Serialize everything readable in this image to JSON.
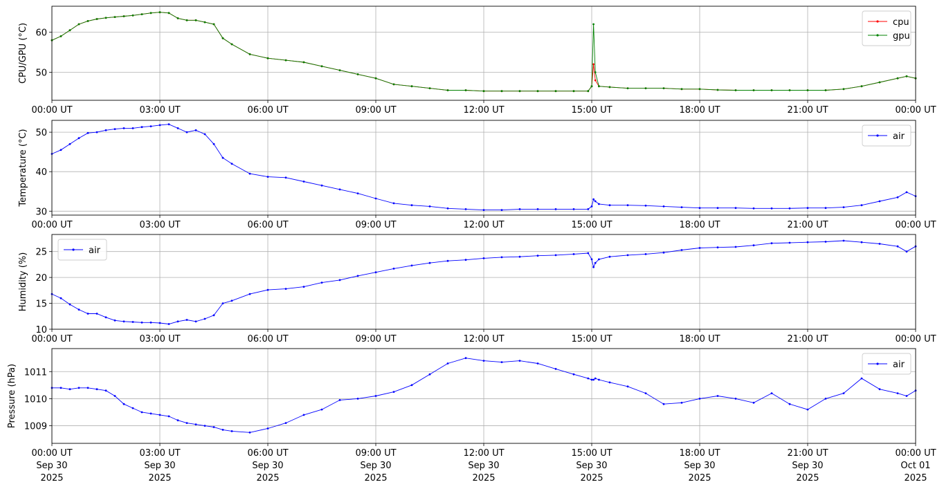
{
  "chart_data": [
    {
      "type": "line",
      "ylabel": "CPU/GPU (°C)",
      "ylim": [
        43,
        66.5
      ],
      "yticks": [
        50,
        60
      ],
      "xlim": [
        "00:00 UT",
        "00:00 UT"
      ],
      "xtick_labels": [
        "00:00 UT",
        "03:00 UT",
        "06:00 UT",
        "09:00 UT",
        "12:00 UT",
        "15:00 UT",
        "18:00 UT",
        "21:00 UT",
        "00:00 UT"
      ],
      "grid": true,
      "legend": "top-right",
      "x_hours": [
        0,
        0.25,
        0.5,
        0.75,
        1,
        1.25,
        1.5,
        1.75,
        2,
        2.25,
        2.5,
        2.75,
        3,
        3.25,
        3.5,
        3.75,
        4,
        4.25,
        4.5,
        4.75,
        5,
        5.5,
        6,
        6.5,
        7,
        7.5,
        8,
        8.5,
        9,
        9.5,
        10,
        10.5,
        11,
        11.5,
        12,
        12.5,
        13,
        13.5,
        14,
        14.5,
        14.9,
        15,
        15.05,
        15.1,
        15.2,
        15.5,
        16,
        16.5,
        17,
        17.5,
        18,
        18.5,
        19,
        19.5,
        20,
        20.5,
        21,
        21.5,
        22,
        22.5,
        23,
        23.5,
        23.75,
        24
      ],
      "series": [
        {
          "name": "cpu",
          "color": "#ff0000",
          "values": [
            58,
            59,
            60.5,
            62,
            62.8,
            63.3,
            63.6,
            63.8,
            64,
            64.2,
            64.5,
            64.8,
            65,
            64.8,
            63.5,
            63,
            63,
            62.5,
            62,
            58.5,
            57,
            54.5,
            53.5,
            53,
            52.5,
            51.5,
            50.5,
            49.5,
            48.5,
            47,
            46.5,
            46,
            45.5,
            45.5,
            45.3,
            45.3,
            45.3,
            45.3,
            45.3,
            45.3,
            45.3,
            46.5,
            52,
            48,
            46.5,
            46.3,
            46,
            46,
            46,
            45.8,
            45.8,
            45.6,
            45.5,
            45.5,
            45.5,
            45.5,
            45.5,
            45.5,
            45.8,
            46.5,
            47.5,
            48.5,
            49,
            48.5
          ]
        },
        {
          "name": "gpu",
          "color": "#008000",
          "values": [
            58,
            59,
            60.5,
            62,
            62.8,
            63.3,
            63.6,
            63.8,
            64,
            64.2,
            64.5,
            64.8,
            65,
            64.8,
            63.5,
            63,
            63,
            62.5,
            62,
            58.5,
            57,
            54.5,
            53.5,
            53,
            52.5,
            51.5,
            50.5,
            49.5,
            48.5,
            47,
            46.5,
            46,
            45.5,
            45.5,
            45.3,
            45.3,
            45.3,
            45.3,
            45.3,
            45.3,
            45.3,
            46.5,
            62,
            50,
            46.5,
            46.3,
            46,
            46,
            46,
            45.8,
            45.8,
            45.6,
            45.5,
            45.5,
            45.5,
            45.5,
            45.5,
            45.5,
            45.8,
            46.5,
            47.5,
            48.5,
            49,
            48.5
          ]
        }
      ]
    },
    {
      "type": "line",
      "ylabel": "Temperature (°C)",
      "ylim": [
        29,
        53
      ],
      "yticks": [
        30,
        40,
        50
      ],
      "xlim": [
        "00:00 UT",
        "00:00 UT"
      ],
      "xtick_labels": [
        "00:00 UT",
        "03:00 UT",
        "06:00 UT",
        "09:00 UT",
        "12:00 UT",
        "15:00 UT",
        "18:00 UT",
        "21:00 UT",
        "00:00 UT"
      ],
      "grid": true,
      "legend": "top-right",
      "x_hours": [
        0,
        0.25,
        0.5,
        0.75,
        1,
        1.25,
        1.5,
        1.75,
        2,
        2.25,
        2.5,
        2.75,
        3,
        3.25,
        3.5,
        3.75,
        4,
        4.25,
        4.5,
        4.75,
        5,
        5.5,
        6,
        6.5,
        7,
        7.5,
        8,
        8.5,
        9,
        9.5,
        10,
        10.5,
        11,
        11.5,
        12,
        12.5,
        13,
        13.5,
        14,
        14.5,
        14.9,
        15,
        15.05,
        15.1,
        15.2,
        15.5,
        16,
        16.5,
        17,
        17.5,
        18,
        18.5,
        19,
        19.5,
        20,
        20.5,
        21,
        21.5,
        22,
        22.5,
        23,
        23.5,
        23.75,
        24
      ],
      "series": [
        {
          "name": "air",
          "color": "#0000ff",
          "values": [
            44.5,
            45.5,
            47,
            48.5,
            49.8,
            50,
            50.5,
            50.8,
            51,
            51,
            51.3,
            51.5,
            51.8,
            52,
            51,
            50,
            50.5,
            49.5,
            47,
            43.5,
            42,
            39.5,
            38.7,
            38.5,
            37.5,
            36.5,
            35.5,
            34.5,
            33.2,
            32,
            31.5,
            31.2,
            30.7,
            30.5,
            30.3,
            30.3,
            30.5,
            30.5,
            30.5,
            30.5,
            30.5,
            31.2,
            33,
            32.5,
            31.8,
            31.5,
            31.5,
            31.4,
            31.2,
            31,
            30.8,
            30.8,
            30.8,
            30.7,
            30.7,
            30.7,
            30.8,
            30.8,
            31,
            31.5,
            32.5,
            33.5,
            34.8,
            33.8
          ]
        }
      ]
    },
    {
      "type": "line",
      "ylabel": "Humidity (%)",
      "ylim": [
        10,
        28.3
      ],
      "yticks": [
        10,
        15,
        20,
        25
      ],
      "xlim": [
        "00:00 UT",
        "00:00 UT"
      ],
      "xtick_labels": [
        "00:00 UT",
        "03:00 UT",
        "06:00 UT",
        "09:00 UT",
        "12:00 UT",
        "15:00 UT",
        "18:00 UT",
        "21:00 UT",
        "00:00 UT"
      ],
      "grid": true,
      "legend": "top-left",
      "x_hours": [
        0,
        0.25,
        0.5,
        0.75,
        1,
        1.25,
        1.5,
        1.75,
        2,
        2.25,
        2.5,
        2.75,
        3,
        3.25,
        3.5,
        3.75,
        4,
        4.25,
        4.5,
        4.75,
        5,
        5.5,
        6,
        6.5,
        7,
        7.5,
        8,
        8.5,
        9,
        9.5,
        10,
        10.5,
        11,
        11.5,
        12,
        12.5,
        13,
        13.5,
        14,
        14.5,
        14.9,
        15,
        15.05,
        15.1,
        15.2,
        15.5,
        16,
        16.5,
        17,
        17.5,
        18,
        18.5,
        19,
        19.5,
        20,
        20.5,
        21,
        21.5,
        22,
        22.5,
        23,
        23.5,
        23.75,
        24
      ],
      "series": [
        {
          "name": "air",
          "color": "#0000ff",
          "values": [
            16.8,
            16,
            14.8,
            13.8,
            13,
            13,
            12.3,
            11.7,
            11.5,
            11.4,
            11.3,
            11.3,
            11.2,
            11,
            11.5,
            11.8,
            11.5,
            12,
            12.7,
            15,
            15.5,
            16.8,
            17.6,
            17.8,
            18.2,
            19,
            19.5,
            20.3,
            21,
            21.7,
            22.3,
            22.8,
            23.2,
            23.4,
            23.7,
            23.9,
            24,
            24.2,
            24.3,
            24.5,
            24.7,
            23.5,
            22,
            22.8,
            23.5,
            24,
            24.3,
            24.5,
            24.8,
            25.3,
            25.7,
            25.8,
            25.9,
            26.2,
            26.6,
            26.7,
            26.8,
            26.9,
            27.1,
            26.8,
            26.5,
            26,
            25,
            26
          ]
        }
      ]
    },
    {
      "type": "line",
      "ylabel": "Pressure (hPa)",
      "ylim": [
        1008.35,
        1011.85
      ],
      "yticks": [
        1009,
        1010,
        1011
      ],
      "xlim": [
        "00:00 UT Sep 30 2025",
        "00:00 UT Oct 01 2025"
      ],
      "xtick_labels": [
        "00:00 UT",
        "03:00 UT",
        "06:00 UT",
        "09:00 UT",
        "12:00 UT",
        "15:00 UT",
        "18:00 UT",
        "21:00 UT",
        "00:00 UT"
      ],
      "xtick_dates": [
        "Sep 30",
        "Sep 30",
        "Sep 30",
        "Sep 30",
        "Sep 30",
        "Sep 30",
        "Sep 30",
        "Sep 30",
        "Oct 01"
      ],
      "xtick_years": [
        "2025",
        "2025",
        "2025",
        "2025",
        "2025",
        "2025",
        "2025",
        "2025",
        "2025"
      ],
      "grid": true,
      "legend": "top-right",
      "x_hours": [
        0,
        0.25,
        0.5,
        0.75,
        1,
        1.25,
        1.5,
        1.75,
        2,
        2.25,
        2.5,
        2.75,
        3,
        3.25,
        3.5,
        3.75,
        4,
        4.25,
        4.5,
        4.75,
        5,
        5.5,
        6,
        6.5,
        7,
        7.5,
        8,
        8.5,
        9,
        9.5,
        10,
        10.5,
        11,
        11.5,
        12,
        12.5,
        13,
        13.5,
        14,
        14.5,
        14.9,
        15,
        15.05,
        15.1,
        15.2,
        15.5,
        16,
        16.5,
        17,
        17.5,
        18,
        18.5,
        19,
        19.5,
        20,
        20.5,
        21,
        21.5,
        22,
        22.5,
        23,
        23.5,
        23.75,
        24
      ],
      "series": [
        {
          "name": "air",
          "color": "#0000ff",
          "values": [
            1010.4,
            1010.4,
            1010.35,
            1010.4,
            1010.4,
            1010.35,
            1010.3,
            1010.1,
            1009.8,
            1009.65,
            1009.5,
            1009.45,
            1009.4,
            1009.35,
            1009.2,
            1009.1,
            1009.05,
            1009,
            1008.95,
            1008.85,
            1008.8,
            1008.75,
            1008.9,
            1009.1,
            1009.4,
            1009.6,
            1009.95,
            1010,
            1010.1,
            1010.25,
            1010.5,
            1010.9,
            1011.3,
            1011.5,
            1011.4,
            1011.35,
            1011.4,
            1011.3,
            1011.1,
            1010.9,
            1010.75,
            1010.7,
            1010.7,
            1010.75,
            1010.7,
            1010.6,
            1010.45,
            1010.2,
            1009.8,
            1009.85,
            1010,
            1010.1,
            1010,
            1009.85,
            1010.2,
            1009.8,
            1009.6,
            1010,
            1010.2,
            1010.75,
            1010.35,
            1010.2,
            1010.1,
            1010.3
          ]
        }
      ]
    }
  ]
}
